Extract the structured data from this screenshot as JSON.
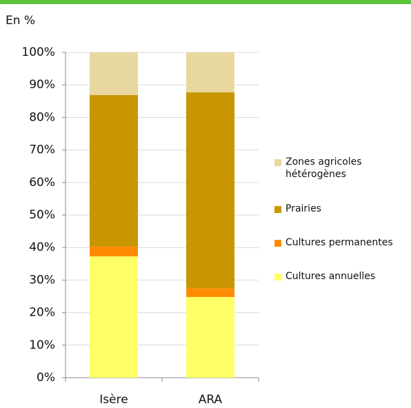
{
  "chart_data": {
    "type": "stacked_bar",
    "subtitle": "En %",
    "categories": [
      "Isère",
      "ARA"
    ],
    "series": [
      {
        "name": "Cultures annuelles",
        "color": "#ffff66",
        "values": [
          37.3,
          24.8
        ]
      },
      {
        "name": "Cultures permanentes",
        "color": "#ff8c00",
        "values": [
          3,
          2.7
        ]
      },
      {
        "name": "Prairies",
        "color": "#c89600",
        "values": [
          46.6,
          60.2
        ]
      },
      {
        "name": "Zones agricoles hétérogènes",
        "color": "#e8d8a0",
        "values": [
          13.1,
          12.3
        ]
      }
    ],
    "ylim": [
      0,
      100
    ],
    "yticks": [
      {
        "value": 0,
        "label": "0%"
      },
      {
        "value": 10,
        "label": "10%"
      },
      {
        "value": 20,
        "label": "20%"
      },
      {
        "value": 30,
        "label": "30%"
      },
      {
        "value": 40,
        "label": "40%"
      },
      {
        "value": 50,
        "label": "50%"
      },
      {
        "value": 60,
        "label": "60%"
      },
      {
        "value": 70,
        "label": "70%"
      },
      {
        "value": 80,
        "label": "80%"
      },
      {
        "value": 90,
        "label": "90%"
      },
      {
        "value": 100,
        "label": "100%"
      }
    ],
    "grid": true,
    "legend": "right"
  }
}
